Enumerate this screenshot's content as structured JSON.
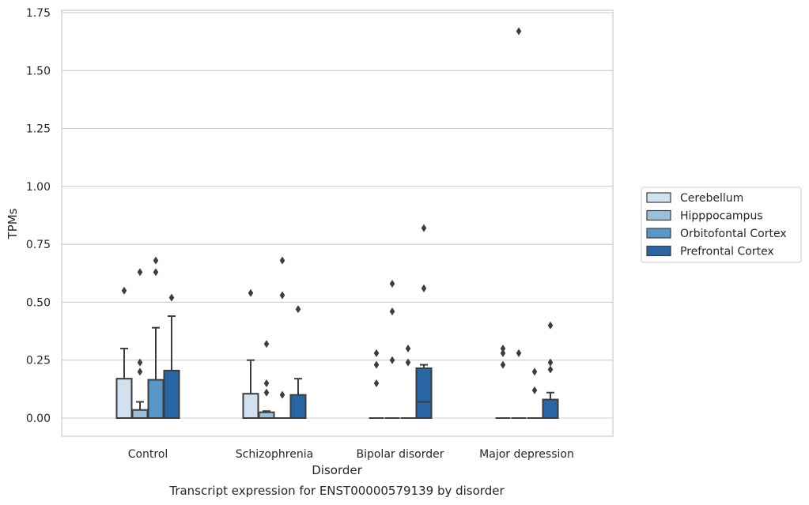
{
  "chart_data": {
    "type": "box",
    "title": "",
    "caption": "Transcript expression for ENST00000579139 by disorder",
    "xlabel": "Disorder",
    "ylabel": "TPMs",
    "ylim": [
      -0.08,
      1.75
    ],
    "yticks": [
      "0.00",
      "0.25",
      "0.50",
      "0.75",
      "1.00",
      "1.25",
      "1.50",
      "1.75"
    ],
    "grid": "horizontal",
    "legend_position": "right",
    "categories": [
      "Control",
      "Schizophrenia",
      "Bipolar disorder",
      "Major depression"
    ],
    "series": [
      {
        "name": "Cerebellum",
        "color": "#d2e1f0",
        "boxes": [
          {
            "q1": 0.0,
            "median": 0.0,
            "q3": 0.17,
            "whisker_low": 0.0,
            "whisker_high": 0.3,
            "outliers": [
              0.55
            ]
          },
          {
            "q1": 0.0,
            "median": 0.0,
            "q3": 0.105,
            "whisker_low": 0.0,
            "whisker_high": 0.25,
            "outliers": [
              0.54
            ]
          },
          {
            "q1": 0.0,
            "median": 0.0,
            "q3": 0.0,
            "whisker_low": 0.0,
            "whisker_high": 0.0,
            "outliers": [
              0.15,
              0.23,
              0.28
            ]
          },
          {
            "q1": 0.0,
            "median": 0.0,
            "q3": 0.0,
            "whisker_low": 0.0,
            "whisker_high": 0.0,
            "outliers": [
              0.23,
              0.28,
              0.3
            ]
          }
        ]
      },
      {
        "name": "Hipppocampus",
        "color": "#9ac0da",
        "boxes": [
          {
            "q1": 0.0,
            "median": 0.0,
            "q3": 0.035,
            "whisker_low": 0.0,
            "whisker_high": 0.07,
            "outliers": [
              0.2,
              0.24,
              0.63
            ]
          },
          {
            "q1": 0.0,
            "median": 0.0,
            "q3": 0.025,
            "whisker_low": 0.0,
            "whisker_high": 0.03,
            "outliers": [
              0.11,
              0.15,
              0.32
            ]
          },
          {
            "q1": 0.0,
            "median": 0.0,
            "q3": 0.0,
            "whisker_low": 0.0,
            "whisker_high": 0.0,
            "outliers": [
              0.25,
              0.46,
              0.58
            ]
          },
          {
            "q1": 0.0,
            "median": 0.0,
            "q3": 0.0,
            "whisker_low": 0.0,
            "whisker_high": 0.0,
            "outliers": [
              0.28,
              1.67
            ]
          }
        ]
      },
      {
        "name": "Orbitofontal Cortex",
        "color": "#5898c8",
        "boxes": [
          {
            "q1": 0.0,
            "median": 0.0,
            "q3": 0.165,
            "whisker_low": 0.0,
            "whisker_high": 0.39,
            "outliers": [
              0.63,
              0.68
            ]
          },
          {
            "q1": 0.0,
            "median": 0.0,
            "q3": 0.0,
            "whisker_low": 0.0,
            "whisker_high": 0.0,
            "outliers": [
              0.1,
              0.53,
              0.68
            ]
          },
          {
            "q1": 0.0,
            "median": 0.0,
            "q3": 0.0,
            "whisker_low": 0.0,
            "whisker_high": 0.0,
            "outliers": [
              0.24,
              0.3
            ]
          },
          {
            "q1": 0.0,
            "median": 0.0,
            "q3": 0.0,
            "whisker_low": 0.0,
            "whisker_high": 0.0,
            "outliers": [
              0.12,
              0.2
            ]
          }
        ]
      },
      {
        "name": "Prefrontal Cortex",
        "color": "#2765a4",
        "boxes": [
          {
            "q1": 0.0,
            "median": 0.0,
            "q3": 0.205,
            "whisker_low": 0.0,
            "whisker_high": 0.44,
            "outliers": [
              0.52
            ]
          },
          {
            "q1": 0.0,
            "median": 0.0,
            "q3": 0.1,
            "whisker_low": 0.0,
            "whisker_high": 0.17,
            "outliers": [
              0.47
            ]
          },
          {
            "q1": 0.0,
            "median": 0.07,
            "q3": 0.215,
            "whisker_low": 0.0,
            "whisker_high": 0.23,
            "outliers": [
              0.56,
              0.82
            ]
          },
          {
            "q1": 0.0,
            "median": 0.0,
            "q3": 0.08,
            "whisker_low": 0.0,
            "whisker_high": 0.11,
            "outliers": [
              0.21,
              0.24,
              0.4
            ]
          }
        ]
      }
    ]
  }
}
